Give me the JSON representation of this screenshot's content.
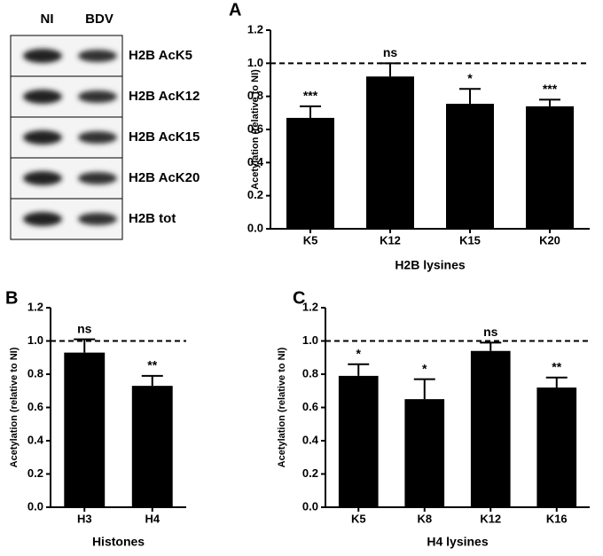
{
  "figure": {
    "panels": [
      "A",
      "B",
      "C"
    ],
    "blot": {
      "columns": [
        "NI",
        "BDV"
      ],
      "rows": [
        "H2B AcK5",
        "H2B AcK12",
        "H2B AcK15",
        "H2B AcK20",
        "H2B tot"
      ]
    }
  },
  "chart_data": [
    {
      "type": "bar",
      "x_label": "H2B lysines",
      "y_label": "Acetylation (relative to NI)",
      "categories": [
        "K5",
        "K12",
        "K15",
        "K20"
      ],
      "values": [
        0.67,
        0.92,
        0.755,
        0.74
      ],
      "errors": [
        0.07,
        0.08,
        0.09,
        0.04
      ],
      "annotations": [
        "***",
        "ns",
        "*",
        "***"
      ],
      "color": "#000000",
      "reference_line": 1.0,
      "ylim": [
        0,
        1.2
      ],
      "yticks": [
        {
          "value": 0,
          "label": "0.0"
        },
        0.2,
        0.4,
        0.6,
        0.8,
        {
          "value": 1,
          "label": "1.0"
        },
        1.2
      ]
    },
    {
      "type": "bar",
      "x_label": "Histones",
      "y_label": "Acetylation (relative to NI)",
      "categories": [
        "H3",
        "H4"
      ],
      "values": [
        0.93,
        0.73
      ],
      "errors": [
        0.08,
        0.06
      ],
      "annotations": [
        "ns",
        "**"
      ],
      "color": "#000000",
      "reference_line": 1.0,
      "ylim": [
        0,
        1.2
      ],
      "yticks": [
        {
          "value": 0,
          "label": "0.0"
        },
        0.2,
        0.4,
        0.6,
        0.8,
        {
          "value": 1,
          "label": "1.0"
        },
        1.2
      ]
    },
    {
      "type": "bar",
      "x_label": "H4 lysines",
      "y_label": "Acetylation (relative to NI)",
      "categories": [
        "K5",
        "K8",
        "K12",
        "K16"
      ],
      "values": [
        0.79,
        0.65,
        0.94,
        0.72
      ],
      "errors": [
        0.07,
        0.12,
        0.05,
        0.06
      ],
      "annotations": [
        "*",
        "*",
        "ns",
        "**"
      ],
      "color": "#000000",
      "reference_line": 1.0,
      "ylim": [
        0,
        1.2
      ],
      "yticks": [
        {
          "value": 0,
          "label": "0.0"
        },
        0.2,
        0.4,
        0.6,
        0.8,
        {
          "value": 1,
          "label": "1.0"
        },
        1.2
      ]
    }
  ]
}
